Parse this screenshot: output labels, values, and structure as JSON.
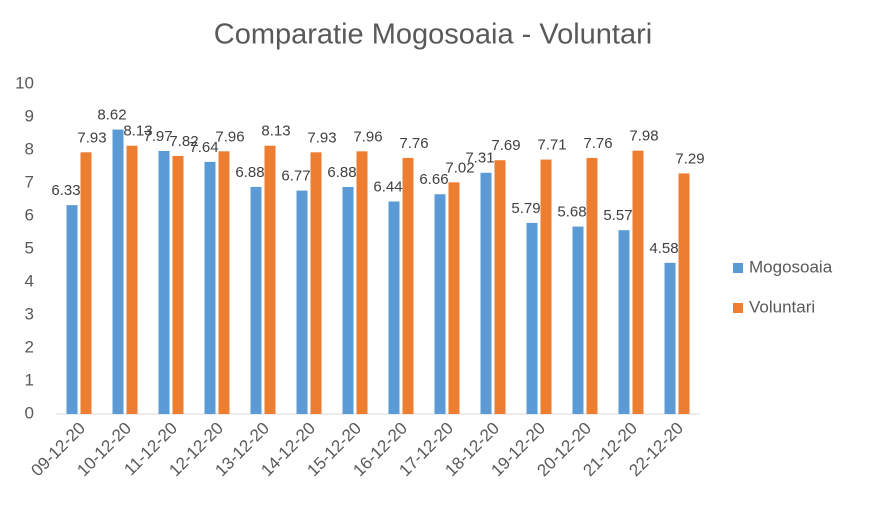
{
  "chart_data": {
    "type": "bar",
    "title": "Comparatie Mogosoaia - Voluntari",
    "categories": [
      "09-12-20",
      "10-12-20",
      "11-12-20",
      "12-12-20",
      "13-12-20",
      "14-12-20",
      "15-12-20",
      "16-12-20",
      "17-12-20",
      "18-12-20",
      "19-12-20",
      "20-12-20",
      "21-12-20",
      "22-12-20"
    ],
    "series": [
      {
        "name": "Mogosoaia",
        "color": "#5b9bd5",
        "values": [
          6.33,
          8.62,
          7.97,
          7.64,
          6.88,
          6.77,
          6.88,
          6.44,
          6.66,
          7.31,
          5.79,
          5.68,
          5.57,
          4.58
        ]
      },
      {
        "name": "Voluntari",
        "color": "#ed7d31",
        "values": [
          7.93,
          8.13,
          7.82,
          7.96,
          8.13,
          7.93,
          7.96,
          7.76,
          7.02,
          7.69,
          7.71,
          7.76,
          7.98,
          7.29
        ]
      }
    ],
    "ylim": [
      0,
      10
    ],
    "yticks": [
      0,
      1,
      2,
      3,
      4,
      5,
      6,
      7,
      8,
      9,
      10
    ],
    "legend": "right"
  }
}
